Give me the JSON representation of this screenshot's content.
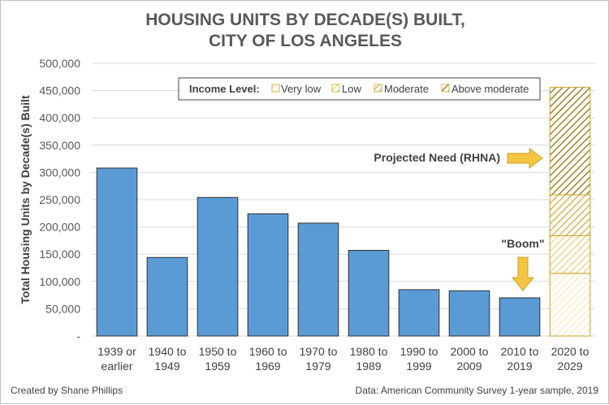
{
  "colors": {
    "bar_fill": "#5b9bd5",
    "bar_stroke": "#2f2f2f",
    "projected_stroke": "#c9a227",
    "hatch_very_low": "#f5df86",
    "hatch_low": "#e8c34a",
    "hatch_moderate": "#d4a82a",
    "hatch_above": "#9a7b16",
    "arrow": "#f4c542",
    "grid": "#d9d9d9"
  },
  "chart_data": {
    "type": "bar",
    "title_lines": [
      "HOUSING UNITS BY DECADE(S) BUILT,",
      "CITY OF LOS ANGELES"
    ],
    "ylabel": "Total Housing Units by Decade(s) Built",
    "ylim": [
      0,
      500000
    ],
    "yticks": [
      0,
      50000,
      100000,
      150000,
      200000,
      250000,
      300000,
      350000,
      400000,
      450000,
      500000
    ],
    "ytick_labels": [
      "-",
      "50,000",
      "100,000",
      "150,000",
      "200,000",
      "250,000",
      "300,000",
      "350,000",
      "400,000",
      "450,000",
      "500,000"
    ],
    "categories": [
      [
        "1939 or",
        "earlier"
      ],
      [
        "1940 to",
        "1949"
      ],
      [
        "1950 to",
        "1959"
      ],
      [
        "1960 to",
        "1969"
      ],
      [
        "1970 to",
        "1979"
      ],
      [
        "1980 to",
        "1989"
      ],
      [
        "1990 to",
        "1999"
      ],
      [
        "2000 to",
        "2009"
      ],
      [
        "2010 to",
        "2019"
      ],
      [
        "2020 to",
        "2029"
      ]
    ],
    "values": [
      308000,
      144000,
      254000,
      224000,
      207000,
      157000,
      85000,
      83000,
      70000,
      null
    ],
    "projected": {
      "category_index": 9,
      "segments": [
        {
          "name": "Very low",
          "value": 115000,
          "pattern": "very_low"
        },
        {
          "name": "Low",
          "value": 69000,
          "pattern": "low"
        },
        {
          "name": "Moderate",
          "value": 75000,
          "pattern": "moderate"
        },
        {
          "name": "Above moderate",
          "value": 197000,
          "pattern": "above"
        }
      ]
    },
    "legend": {
      "title": "Income Level:",
      "items": [
        "Very low",
        "Low",
        "Moderate",
        "Above moderate"
      ]
    },
    "annotations": {
      "projected": "Projected Need (RHNA)",
      "boom": "\"Boom\""
    }
  },
  "footer": {
    "left": "Created by Shane Phillips",
    "right": "Data: American Community Survey 1-year sample, 2019"
  }
}
